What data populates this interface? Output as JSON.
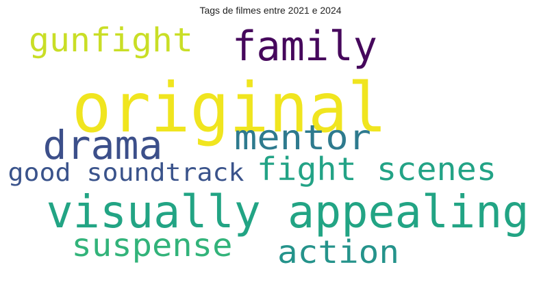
{
  "chart_data": {
    "type": "wordcloud",
    "title": "Tags de filmes entre 2021 e 2024",
    "colormap": "viridis",
    "background": "#ffffff",
    "words": [
      {
        "text": "original",
        "color": "#f0e51f"
      },
      {
        "text": "visually appealing",
        "color": "#22a484"
      },
      {
        "text": "family",
        "color": "#46085c"
      },
      {
        "text": "gunfight",
        "color": "#c9de26"
      },
      {
        "text": "drama",
        "color": "#3c4f8a"
      },
      {
        "text": "mentor",
        "color": "#2e7a8e"
      },
      {
        "text": "fight scenes",
        "color": "#23a386"
      },
      {
        "text": "good soundtrack",
        "color": "#3a538b"
      },
      {
        "text": "suspense",
        "color": "#32b37a"
      },
      {
        "text": "action",
        "color": "#25938b"
      }
    ]
  }
}
